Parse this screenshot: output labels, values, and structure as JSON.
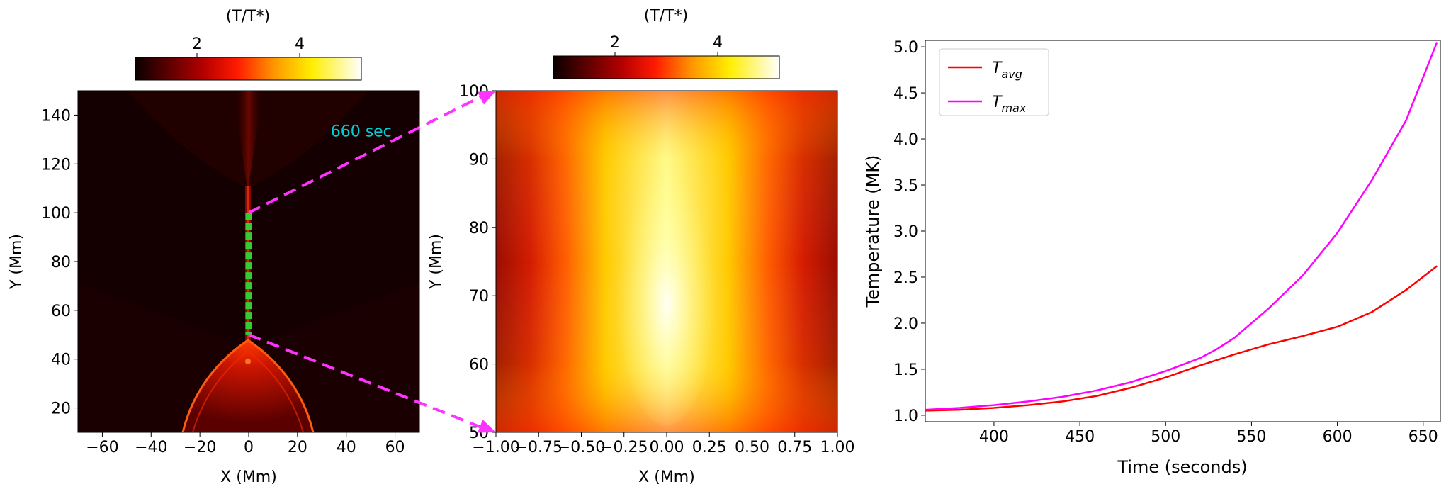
{
  "chart_data": [
    {
      "type": "heatmap",
      "title": "",
      "xlabel": "X (Mm)",
      "ylabel": "Y (Mm)",
      "xlim": [
        -70,
        70
      ],
      "ylim": [
        10,
        150
      ],
      "xticks": [
        "−60",
        "−40",
        "−20",
        "0",
        "20",
        "40",
        "60"
      ],
      "xtick_values": [
        -60,
        -40,
        -20,
        0,
        20,
        40,
        60
      ],
      "yticks": [
        "20",
        "40",
        "60",
        "80",
        "100",
        "120",
        "140"
      ],
      "ytick_values": [
        20,
        40,
        60,
        80,
        100,
        120,
        140
      ],
      "colorbar": {
        "label": "(T/T*)",
        "cmap": "hot",
        "range": [
          0.8,
          5.2
        ],
        "ticks": [
          "2",
          "4"
        ],
        "tick_values": [
          2,
          4
        ]
      },
      "annotation": {
        "text": "660 sec",
        "color": "#00cfd6",
        "x": 40,
        "y": 140
      },
      "highlight_segment": {
        "x": 0,
        "y_start": 50,
        "y_end": 100,
        "color": "#33cc33"
      },
      "connectors": [
        {
          "from": [
            0,
            100
          ],
          "to_panel": 2,
          "to": [
            -1.0,
            100
          ],
          "color": "#ff33ff"
        },
        {
          "from": [
            0,
            50
          ],
          "to_panel": 2,
          "to": [
            -1.0,
            50
          ],
          "color": "#ff33ff"
        }
      ]
    },
    {
      "type": "heatmap",
      "title": "",
      "xlabel": "X (Mm)",
      "ylabel": "Y (Mm)",
      "xlim": [
        -1.0,
        1.0
      ],
      "ylim": [
        50,
        100
      ],
      "xticks": [
        "−1.00",
        "−0.75",
        "−0.50",
        "−0.25",
        "0.00",
        "0.25",
        "0.50",
        "0.75",
        "1.00"
      ],
      "xtick_values": [
        -1.0,
        -0.75,
        -0.5,
        -0.25,
        0.0,
        0.25,
        0.5,
        0.75,
        1.0
      ],
      "yticks": [
        "50",
        "60",
        "70",
        "80",
        "90",
        "100"
      ],
      "ytick_values": [
        50,
        60,
        70,
        80,
        90,
        100
      ],
      "colorbar": {
        "label": "(T/T*)",
        "cmap": "hot",
        "range": [
          0.8,
          5.2
        ],
        "ticks": [
          "2",
          "4"
        ],
        "tick_values": [
          2,
          4
        ]
      }
    },
    {
      "type": "line",
      "title": "",
      "xlabel": "Time (seconds)",
      "ylabel": "Temperature (MK)",
      "xlim": [
        360,
        660
      ],
      "ylim": [
        0.93,
        5.07
      ],
      "xticks": [
        "400",
        "450",
        "500",
        "550",
        "600",
        "650"
      ],
      "xtick_values": [
        400,
        450,
        500,
        550,
        600,
        650
      ],
      "yticks": [
        "1.0",
        "1.5",
        "2.0",
        "2.5",
        "3.0",
        "3.5",
        "4.0",
        "4.5",
        "5.0"
      ],
      "ytick_values": [
        1.0,
        1.5,
        2.0,
        2.5,
        3.0,
        3.5,
        4.0,
        4.5,
        5.0
      ],
      "legend_position": "upper-left",
      "series": [
        {
          "name": "T_avg",
          "label_main": "T",
          "label_sub": "avg",
          "color": "#ff0000",
          "x": [
            360,
            380,
            400,
            420,
            440,
            460,
            480,
            500,
            520,
            540,
            560,
            580,
            600,
            620,
            640,
            658
          ],
          "y": [
            1.05,
            1.06,
            1.08,
            1.11,
            1.15,
            1.21,
            1.3,
            1.41,
            1.54,
            1.66,
            1.77,
            1.86,
            1.96,
            2.12,
            2.36,
            2.62
          ]
        },
        {
          "name": "T_max",
          "label_main": "T",
          "label_sub": "max",
          "color": "#ff00ff",
          "x": [
            360,
            380,
            400,
            420,
            440,
            460,
            480,
            500,
            520,
            530,
            540,
            560,
            580,
            600,
            620,
            640,
            658
          ],
          "y": [
            1.06,
            1.08,
            1.11,
            1.15,
            1.2,
            1.27,
            1.36,
            1.48,
            1.62,
            1.72,
            1.84,
            2.16,
            2.52,
            2.98,
            3.55,
            4.2,
            5.05
          ]
        }
      ]
    }
  ]
}
